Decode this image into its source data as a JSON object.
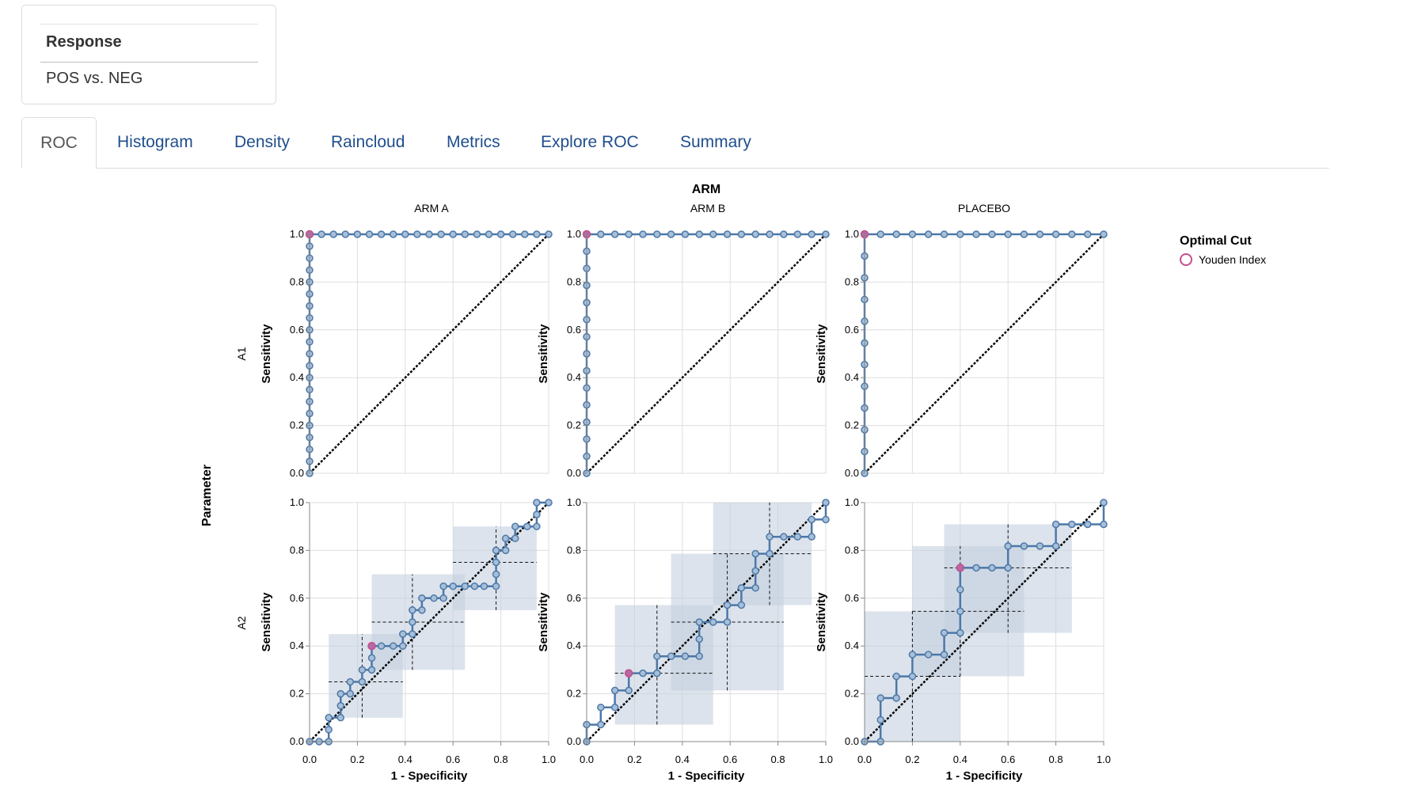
{
  "response": {
    "title": "Response",
    "value": "POS vs. NEG"
  },
  "tabs": [
    {
      "label": "ROC",
      "active": true
    },
    {
      "label": "Histogram"
    },
    {
      "label": "Density"
    },
    {
      "label": "Raincloud"
    },
    {
      "label": "Metrics"
    },
    {
      "label": "Explore ROC"
    },
    {
      "label": "Summary"
    }
  ],
  "colors": {
    "curve": "#4c78a8",
    "optimal": "#c44e8f",
    "box_fill": "#c5d0e0"
  },
  "chart_data": {
    "type": "line",
    "column_facet_title": "ARM",
    "row_facet_title": "Parameter",
    "columns": [
      "ARM A",
      "ARM B",
      "PLACEBO"
    ],
    "rows": [
      "A1",
      "A2"
    ],
    "xlabel": "1 - Specificity",
    "ylabel": "Sensitivity",
    "xlim": [
      0,
      1
    ],
    "ylim": [
      0,
      1
    ],
    "xticks": [
      "0.0",
      "0.2",
      "0.4",
      "0.6",
      "0.8",
      "1.0"
    ],
    "yticks": [
      "0.0",
      "0.2",
      "0.4",
      "0.6",
      "0.8",
      "1.0"
    ],
    "grid": true,
    "legend": {
      "title": "Optimal Cut",
      "items": [
        "Youden Index"
      ],
      "position": "right"
    },
    "panels": [
      {
        "row": "A1",
        "column": "ARM A",
        "n_pos": 20,
        "n_neg": 20,
        "optimal": [
          0,
          1
        ],
        "boxes": [],
        "points": [
          [
            0,
            0
          ],
          [
            0,
            0.05
          ],
          [
            0,
            0.1
          ],
          [
            0,
            0.15
          ],
          [
            0,
            0.2
          ],
          [
            0,
            0.25
          ],
          [
            0,
            0.3
          ],
          [
            0,
            0.35
          ],
          [
            0,
            0.4
          ],
          [
            0,
            0.45
          ],
          [
            0,
            0.5
          ],
          [
            0,
            0.55
          ],
          [
            0,
            0.6
          ],
          [
            0,
            0.65
          ],
          [
            0,
            0.7
          ],
          [
            0,
            0.75
          ],
          [
            0,
            0.8
          ],
          [
            0,
            0.85
          ],
          [
            0,
            0.9
          ],
          [
            0,
            0.95
          ],
          [
            0,
            1
          ],
          [
            0.05,
            1
          ],
          [
            0.1,
            1
          ],
          [
            0.15,
            1
          ],
          [
            0.2,
            1
          ],
          [
            0.25,
            1
          ],
          [
            0.3,
            1
          ],
          [
            0.35,
            1
          ],
          [
            0.4,
            1
          ],
          [
            0.45,
            1
          ],
          [
            0.5,
            1
          ],
          [
            0.55,
            1
          ],
          [
            0.6,
            1
          ],
          [
            0.65,
            1
          ],
          [
            0.7,
            1
          ],
          [
            0.75,
            1
          ],
          [
            0.8,
            1
          ],
          [
            0.85,
            1
          ],
          [
            0.9,
            1
          ],
          [
            0.95,
            1
          ],
          [
            1,
            1
          ]
        ]
      },
      {
        "row": "A1",
        "column": "ARM B",
        "n_pos": 14,
        "n_neg": 17,
        "optimal": [
          0,
          1
        ],
        "boxes": [],
        "points": [
          [
            0,
            0
          ],
          [
            0,
            0.071
          ],
          [
            0,
            0.143
          ],
          [
            0,
            0.214
          ],
          [
            0,
            0.286
          ],
          [
            0,
            0.357
          ],
          [
            0,
            0.429
          ],
          [
            0,
            0.5
          ],
          [
            0,
            0.571
          ],
          [
            0,
            0.643
          ],
          [
            0,
            0.714
          ],
          [
            0,
            0.786
          ],
          [
            0,
            0.857
          ],
          [
            0,
            0.929
          ],
          [
            0,
            1
          ],
          [
            0.059,
            1
          ],
          [
            0.118,
            1
          ],
          [
            0.176,
            1
          ],
          [
            0.235,
            1
          ],
          [
            0.294,
            1
          ],
          [
            0.353,
            1
          ],
          [
            0.412,
            1
          ],
          [
            0.471,
            1
          ],
          [
            0.529,
            1
          ],
          [
            0.588,
            1
          ],
          [
            0.647,
            1
          ],
          [
            0.706,
            1
          ],
          [
            0.765,
            1
          ],
          [
            0.824,
            1
          ],
          [
            0.882,
            1
          ],
          [
            0.941,
            1
          ],
          [
            1,
            1
          ]
        ]
      },
      {
        "row": "A1",
        "column": "PLACEBO",
        "n_pos": 11,
        "n_neg": 15,
        "optimal": [
          0,
          1
        ],
        "boxes": [],
        "points": [
          [
            0,
            0
          ],
          [
            0,
            0.091
          ],
          [
            0,
            0.182
          ],
          [
            0,
            0.273
          ],
          [
            0,
            0.364
          ],
          [
            0,
            0.455
          ],
          [
            0,
            0.545
          ],
          [
            0,
            0.636
          ],
          [
            0,
            0.727
          ],
          [
            0,
            0.818
          ],
          [
            0,
            0.909
          ],
          [
            0,
            1
          ],
          [
            0.067,
            1
          ],
          [
            0.133,
            1
          ],
          [
            0.2,
            1
          ],
          [
            0.267,
            1
          ],
          [
            0.333,
            1
          ],
          [
            0.4,
            1
          ],
          [
            0.467,
            1
          ],
          [
            0.533,
            1
          ],
          [
            0.6,
            1
          ],
          [
            0.667,
            1
          ],
          [
            0.733,
            1
          ],
          [
            0.8,
            1
          ],
          [
            0.867,
            1
          ],
          [
            0.933,
            1
          ],
          [
            1,
            1
          ]
        ]
      },
      {
        "row": "A2",
        "column": "ARM A",
        "optimal": [
          0.26,
          0.4
        ],
        "points": [
          [
            0,
            0
          ],
          [
            0.04,
            0
          ],
          [
            0.08,
            0
          ],
          [
            0.08,
            0.05
          ],
          [
            0.08,
            0.1
          ],
          [
            0.13,
            0.1
          ],
          [
            0.13,
            0.15
          ],
          [
            0.13,
            0.2
          ],
          [
            0.17,
            0.2
          ],
          [
            0.17,
            0.25
          ],
          [
            0.22,
            0.25
          ],
          [
            0.22,
            0.3
          ],
          [
            0.26,
            0.3
          ],
          [
            0.26,
            0.35
          ],
          [
            0.26,
            0.4
          ],
          [
            0.3,
            0.4
          ],
          [
            0.35,
            0.4
          ],
          [
            0.39,
            0.4
          ],
          [
            0.39,
            0.45
          ],
          [
            0.43,
            0.45
          ],
          [
            0.43,
            0.5
          ],
          [
            0.43,
            0.55
          ],
          [
            0.47,
            0.55
          ],
          [
            0.47,
            0.6
          ],
          [
            0.52,
            0.6
          ],
          [
            0.56,
            0.6
          ],
          [
            0.56,
            0.65
          ],
          [
            0.6,
            0.65
          ],
          [
            0.65,
            0.65
          ],
          [
            0.69,
            0.65
          ],
          [
            0.73,
            0.65
          ],
          [
            0.78,
            0.65
          ],
          [
            0.78,
            0.7
          ],
          [
            0.78,
            0.75
          ],
          [
            0.78,
            0.8
          ],
          [
            0.82,
            0.8
          ],
          [
            0.82,
            0.85
          ],
          [
            0.86,
            0.85
          ],
          [
            0.86,
            0.9
          ],
          [
            0.91,
            0.9
          ],
          [
            0.95,
            0.9
          ],
          [
            0.95,
            0.95
          ],
          [
            0.95,
            1
          ],
          [
            1,
            1
          ]
        ],
        "boxes": [
          {
            "x": 0.22,
            "y": 0.25,
            "x0": 0.08,
            "x1": 0.39,
            "y0": 0.1,
            "y1": 0.45
          },
          {
            "x": 0.43,
            "y": 0.5,
            "x0": 0.26,
            "x1": 0.65,
            "y0": 0.3,
            "y1": 0.7
          },
          {
            "x": 0.78,
            "y": 0.75,
            "x0": 0.6,
            "x1": 0.95,
            "y0": 0.55,
            "y1": 0.9
          }
        ]
      },
      {
        "row": "A2",
        "column": "ARM B",
        "optimal": [
          0.176,
          0.286
        ],
        "points": [
          [
            0,
            0
          ],
          [
            0,
            0.071
          ],
          [
            0.059,
            0.071
          ],
          [
            0.059,
            0.143
          ],
          [
            0.118,
            0.143
          ],
          [
            0.118,
            0.214
          ],
          [
            0.176,
            0.214
          ],
          [
            0.176,
            0.286
          ],
          [
            0.235,
            0.286
          ],
          [
            0.294,
            0.286
          ],
          [
            0.294,
            0.357
          ],
          [
            0.353,
            0.357
          ],
          [
            0.412,
            0.357
          ],
          [
            0.471,
            0.357
          ],
          [
            0.471,
            0.429
          ],
          [
            0.471,
            0.5
          ],
          [
            0.529,
            0.5
          ],
          [
            0.588,
            0.5
          ],
          [
            0.588,
            0.571
          ],
          [
            0.647,
            0.571
          ],
          [
            0.647,
            0.643
          ],
          [
            0.706,
            0.643
          ],
          [
            0.706,
            0.714
          ],
          [
            0.706,
            0.786
          ],
          [
            0.765,
            0.786
          ],
          [
            0.765,
            0.857
          ],
          [
            0.824,
            0.857
          ],
          [
            0.882,
            0.857
          ],
          [
            0.941,
            0.857
          ],
          [
            0.941,
            0.929
          ],
          [
            1,
            0.929
          ],
          [
            1,
            1
          ]
        ],
        "boxes": [
          {
            "x": 0.294,
            "y": 0.286,
            "x0": 0.118,
            "x1": 0.529,
            "y0": 0.071,
            "y1": 0.571
          },
          {
            "x": 0.588,
            "y": 0.5,
            "x0": 0.353,
            "x1": 0.824,
            "y0": 0.214,
            "y1": 0.786
          },
          {
            "x": 0.765,
            "y": 0.786,
            "x0": 0.529,
            "x1": 0.941,
            "y0": 0.571,
            "y1": 1.0
          }
        ]
      },
      {
        "row": "A2",
        "column": "PLACEBO",
        "optimal": [
          0.4,
          0.727
        ],
        "points": [
          [
            0,
            0
          ],
          [
            0.067,
            0
          ],
          [
            0.067,
            0.091
          ],
          [
            0.067,
            0.182
          ],
          [
            0.133,
            0.182
          ],
          [
            0.133,
            0.273
          ],
          [
            0.2,
            0.273
          ],
          [
            0.2,
            0.364
          ],
          [
            0.267,
            0.364
          ],
          [
            0.333,
            0.364
          ],
          [
            0.333,
            0.455
          ],
          [
            0.4,
            0.455
          ],
          [
            0.4,
            0.545
          ],
          [
            0.4,
            0.636
          ],
          [
            0.4,
            0.727
          ],
          [
            0.467,
            0.727
          ],
          [
            0.533,
            0.727
          ],
          [
            0.6,
            0.727
          ],
          [
            0.6,
            0.818
          ],
          [
            0.667,
            0.818
          ],
          [
            0.733,
            0.818
          ],
          [
            0.8,
            0.818
          ],
          [
            0.8,
            0.909
          ],
          [
            0.867,
            0.909
          ],
          [
            0.933,
            0.909
          ],
          [
            1,
            0.909
          ],
          [
            1,
            1
          ]
        ],
        "boxes": [
          {
            "x": 0.2,
            "y": 0.273,
            "x0": 0.0,
            "x1": 0.4,
            "y0": 0.0,
            "y1": 0.545
          },
          {
            "x": 0.4,
            "y": 0.545,
            "x0": 0.2,
            "x1": 0.667,
            "y0": 0.273,
            "y1": 0.818
          },
          {
            "x": 0.6,
            "y": 0.727,
            "x0": 0.333,
            "x1": 0.867,
            "y0": 0.455,
            "y1": 0.909
          }
        ]
      }
    ]
  }
}
